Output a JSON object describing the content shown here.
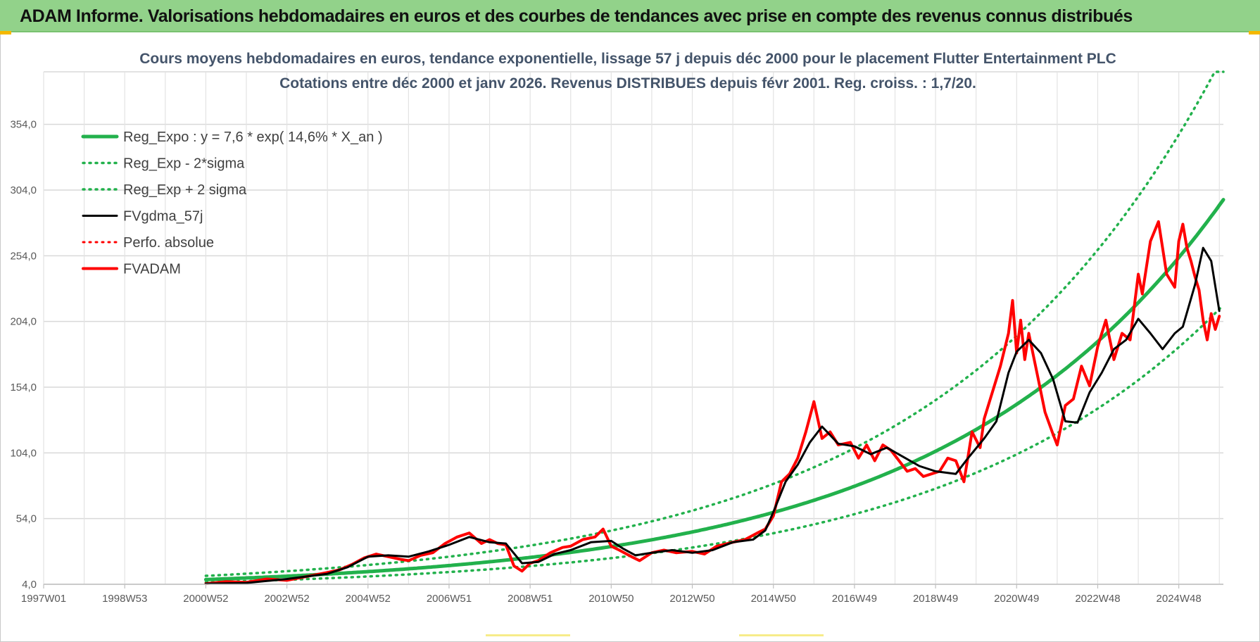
{
  "banner": {
    "title": "ADAM Informe. Valorisations hebdomadaires en euros et des courbes de tendances avec prise en compte des revenus connus distribués"
  },
  "chart_data": {
    "type": "line",
    "title": "Cours moyens hebdomadaires en euros, tendance exponentielle, lissage 57 j depuis déc 2000 pour le placement Flutter Entertainment PLC",
    "subtitle": "Cotations entre déc 2000 et janv 2026. Revenus DISTRIBUES depuis févr 2001. Reg. croiss. : 1,7/20.",
    "xlabel": "",
    "ylabel": "",
    "x_ticks": [
      "1997W01",
      "1998W53",
      "2000W52",
      "2002W52",
      "2004W52",
      "2006W51",
      "2008W51",
      "2010W50",
      "2012W50",
      "2014W50",
      "2016W49",
      "2018W49",
      "2020W49",
      "2022W48",
      "2024W48"
    ],
    "x_range": [
      1997.0,
      2026.1
    ],
    "x_tick_years": [
      1997.0,
      1999.0,
      2001.0,
      2003.0,
      2005.0,
      2007.0,
      2009.0,
      2011.0,
      2013.0,
      2015.0,
      2017.0,
      2019.0,
      2021.0,
      2023.0,
      2025.0
    ],
    "y_ticks": [
      "4,0",
      "54,0",
      "104,0",
      "154,0",
      "204,0",
      "254,0",
      "304,0",
      "354,0"
    ],
    "y_tick_values": [
      4,
      54,
      104,
      154,
      204,
      254,
      304,
      354
    ],
    "ylim": [
      4,
      394
    ],
    "grid": true,
    "legend_position": "top-left",
    "regression": {
      "a": 7.6,
      "rate": 0.146,
      "x0": 2001.0,
      "sigma_factor": 1.37
    },
    "series": [
      {
        "name": "Reg_Expo : y = 7,6 * exp( 14,6% *  X_an )",
        "color": "#22b14c",
        "style": "solid",
        "width": 5
      },
      {
        "name": "Reg_Exp - 2*sigma",
        "color": "#22b14c",
        "style": "dotted",
        "width": 3.5
      },
      {
        "name": "Reg_Exp + 2 sigma",
        "color": "#22b14c",
        "style": "dotted",
        "width": 3.5
      },
      {
        "name": "FVgdma_57j",
        "color": "#000000",
        "style": "solid",
        "width": 3,
        "x": [
          2001.0,
          2002.0,
          2003.0,
          2004.0,
          2004.5,
          2005.0,
          2005.5,
          2006.0,
          2006.5,
          2007.0,
          2007.5,
          2008.0,
          2008.4,
          2008.8,
          2009.2,
          2009.6,
          2010.0,
          2010.5,
          2011.0,
          2011.3,
          2011.6,
          2012.0,
          2012.5,
          2013.0,
          2013.5,
          2014.0,
          2014.5,
          2014.8,
          2015.0,
          2015.3,
          2015.6,
          2015.9,
          2016.2,
          2016.6,
          2017.0,
          2017.4,
          2017.8,
          2018.2,
          2018.6,
          2019.0,
          2019.5,
          2019.8,
          2020.2,
          2020.5,
          2020.8,
          2021.0,
          2021.3,
          2021.6,
          2021.9,
          2022.2,
          2022.5,
          2022.8,
          2023.1,
          2023.4,
          2023.7,
          2024.0,
          2024.3,
          2024.6,
          2024.9,
          2025.1,
          2025.4,
          2025.6,
          2025.8,
          2026.0
        ],
        "y": [
          4.5,
          5.0,
          8.0,
          12.0,
          17.0,
          25.0,
          26.0,
          25.0,
          29.0,
          34.0,
          40.0,
          36.0,
          35.0,
          20.0,
          21.0,
          27.0,
          30.0,
          36.0,
          37.0,
          31.0,
          26.0,
          28.0,
          30.0,
          28.0,
          30.0,
          36.0,
          38.0,
          45.0,
          59.0,
          82.0,
          95.0,
          112.0,
          124.0,
          111.0,
          109.0,
          103.0,
          108.0,
          101.0,
          94.0,
          90.0,
          88.0,
          100.0,
          115.0,
          128.0,
          165.0,
          181.0,
          190.0,
          180.0,
          160.0,
          128.0,
          127.0,
          150.0,
          165.0,
          183.0,
          190.0,
          206.0,
          195.0,
          183.0,
          195.0,
          200.0,
          232.0,
          260.0,
          250.0,
          212.0
        ]
      },
      {
        "name": "Perfo. absolue",
        "color": "#ff0000",
        "style": "dotted",
        "width": 2.5
      },
      {
        "name": "FVADAM",
        "color": "#ff0000",
        "style": "solid",
        "width": 4,
        "x": [
          2001.0,
          2001.5,
          2002.0,
          2002.5,
          2003.0,
          2003.5,
          2004.0,
          2004.3,
          2004.6,
          2004.9,
          2005.2,
          2005.5,
          2005.8,
          2006.0,
          2006.3,
          2006.6,
          2006.9,
          2007.2,
          2007.5,
          2007.8,
          2008.0,
          2008.2,
          2008.4,
          2008.6,
          2008.8,
          2009.0,
          2009.2,
          2009.5,
          2009.8,
          2010.0,
          2010.3,
          2010.6,
          2010.8,
          2011.0,
          2011.2,
          2011.5,
          2011.7,
          2012.0,
          2012.3,
          2012.6,
          2013.0,
          2013.3,
          2013.6,
          2014.0,
          2014.3,
          2014.6,
          2014.8,
          2015.0,
          2015.2,
          2015.4,
          2015.6,
          2015.8,
          2016.0,
          2016.2,
          2016.4,
          2016.6,
          2016.9,
          2017.1,
          2017.3,
          2017.5,
          2017.7,
          2017.9,
          2018.1,
          2018.3,
          2018.5,
          2018.7,
          2018.9,
          2019.1,
          2019.3,
          2019.5,
          2019.7,
          2019.9,
          2020.1,
          2020.2,
          2020.4,
          2020.6,
          2020.8,
          2020.9,
          2021.0,
          2021.1,
          2021.2,
          2021.3,
          2021.5,
          2021.7,
          2021.9,
          2022.0,
          2022.2,
          2022.4,
          2022.6,
          2022.8,
          2023.0,
          2023.2,
          2023.4,
          2023.6,
          2023.8,
          2024.0,
          2024.1,
          2024.3,
          2024.5,
          2024.7,
          2024.9,
          2025.0,
          2025.1,
          2025.2,
          2025.3,
          2025.4,
          2025.5,
          2025.6,
          2025.7,
          2025.8,
          2025.9,
          2026.0
        ],
        "y": [
          4.5,
          6.0,
          5.5,
          8.0,
          7.0,
          10.0,
          13.0,
          15.0,
          19.0,
          24.0,
          27.0,
          25.0,
          23.0,
          22.0,
          26.0,
          28.0,
          35.0,
          40.0,
          43.0,
          35.0,
          38.0,
          35.0,
          34.0,
          18.0,
          14.0,
          20.0,
          22.0,
          28.0,
          32.0,
          33.0,
          38.0,
          40.0,
          46.0,
          33.0,
          30.0,
          25.0,
          22.0,
          28.0,
          30.0,
          28.0,
          29.0,
          27.0,
          33.0,
          36.0,
          38.0,
          43.0,
          46.0,
          56.0,
          82.0,
          88.0,
          100.0,
          120.0,
          143.0,
          115.0,
          120.0,
          110.0,
          112.0,
          100.0,
          110.0,
          98.0,
          110.0,
          106.0,
          98.0,
          90.0,
          92.0,
          86.0,
          88.0,
          90.0,
          100.0,
          98.0,
          82.0,
          120.0,
          108.0,
          130.0,
          150.0,
          170.0,
          195.0,
          220.0,
          180.0,
          205.0,
          175.0,
          195.0,
          165.0,
          135.0,
          118.0,
          110.0,
          140.0,
          145.0,
          170.0,
          155.0,
          185.0,
          205.0,
          175.0,
          195.0,
          190.0,
          240.0,
          225.0,
          265.0,
          280.0,
          240.0,
          230.0,
          265.0,
          278.0,
          260.0,
          250.0,
          238.0,
          228.0,
          205.0,
          190.0,
          210.0,
          198.0,
          208.0
        ]
      }
    ]
  }
}
